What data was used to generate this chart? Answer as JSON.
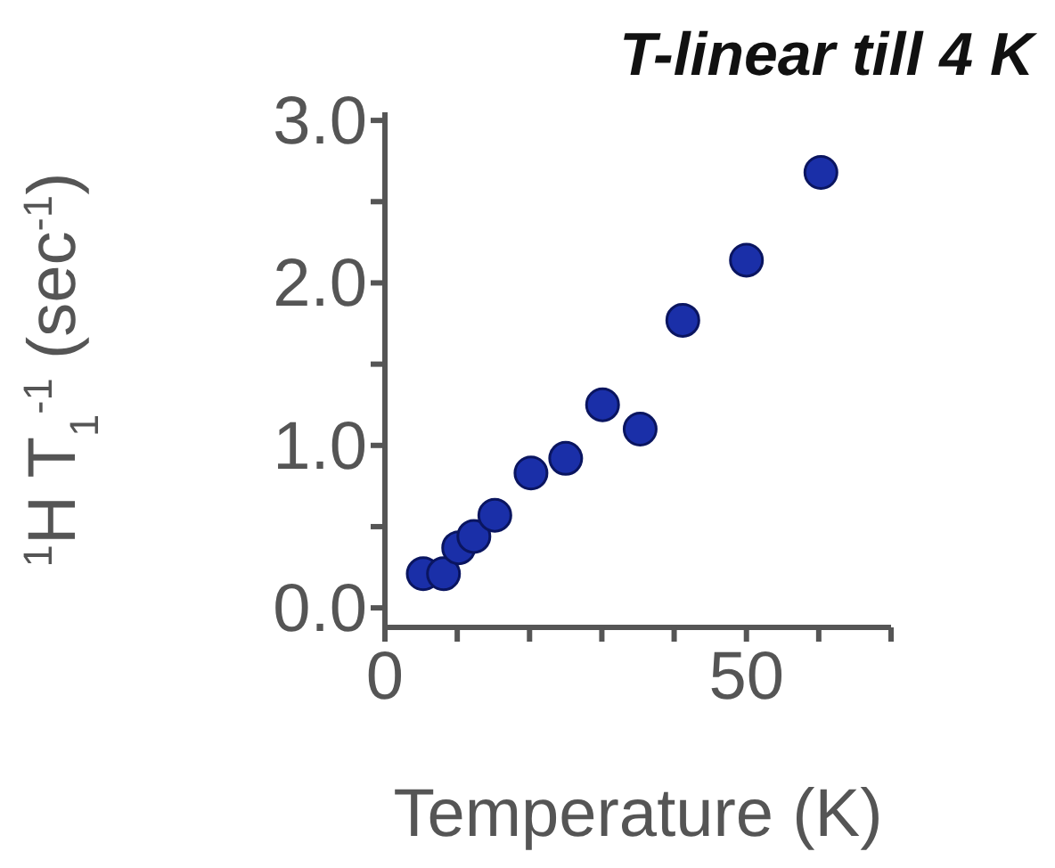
{
  "chart_data": {
    "type": "scatter",
    "title": "T-linear till 4 K",
    "xlabel": "Temperature (K)",
    "ylabel": "$^{1}$H T$_{1}$$^{-1}$ (sec$^{-1}$)",
    "x": [
      5.3,
      8.1,
      10.2,
      12.3,
      15.2,
      20.2,
      25.0,
      30.1,
      35.3,
      41.2,
      50.0,
      60.3
    ],
    "series": [
      {
        "color": "#1a2fa8",
        "values": [
          0.21,
          0.21,
          0.37,
          0.44,
          0.57,
          0.83,
          0.92,
          1.25,
          1.1,
          1.77,
          2.14,
          2.68
        ]
      }
    ],
    "xlim": [
      0,
      70
    ],
    "xticks": [
      0,
      {
        "value": 10,
        "label": null
      },
      {
        "value": 20,
        "label": null
      },
      {
        "value": 30,
        "label": null
      },
      {
        "value": 40,
        "label": null
      },
      50,
      {
        "value": 60,
        "label": null
      },
      {
        "value": 70,
        "label": null
      }
    ],
    "ylim": [
      -0.12,
      3.05
    ],
    "yticks": [
      {
        "value": 0,
        "label": "0.0"
      },
      {
        "value": 0.5,
        "label": null
      },
      {
        "value": 1,
        "label": "1.0"
      },
      {
        "value": 1.5,
        "label": null
      },
      {
        "value": 2,
        "label": "2.0"
      },
      {
        "value": 2.5,
        "label": null
      },
      {
        "value": 3,
        "label": "3.0"
      }
    ],
    "grid": false,
    "legend": false,
    "marker": "circle"
  }
}
